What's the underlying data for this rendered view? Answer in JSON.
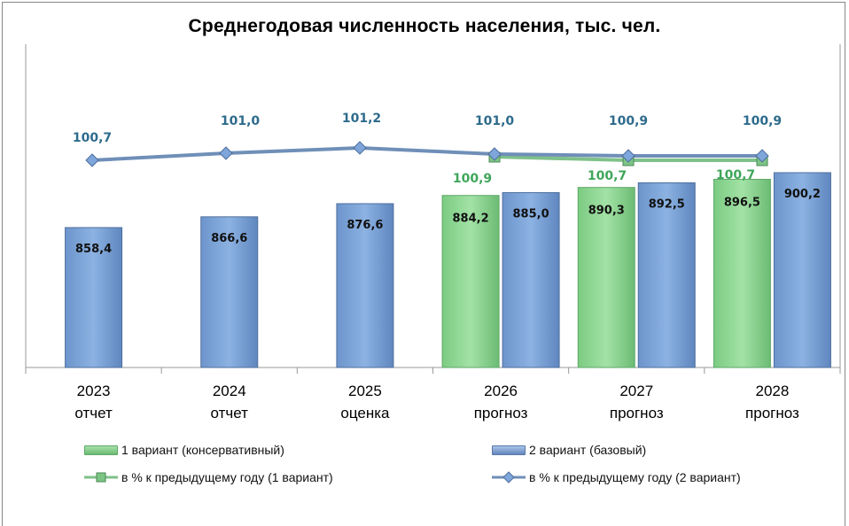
{
  "chart_data": {
    "type": "bar",
    "title": "Среднегодовая численность населения, тыс. чел.",
    "categories": [
      "2023 отчет",
      "2024 отчет",
      "2025 оценка",
      "2026 прогноз",
      "2027 прогноз",
      "2028 прогноз"
    ],
    "category_years": [
      "2023",
      "2024",
      "2025",
      "2026",
      "2027",
      "2028"
    ],
    "category_types": [
      "отчет",
      "отчет",
      "оценка",
      "прогноз",
      "прогноз",
      "прогноз"
    ],
    "series": [
      {
        "name": "1 вариант (консервативный)",
        "kind": "bar",
        "color": "#8FD694",
        "values": [
          null,
          null,
          null,
          884.2,
          890.3,
          896.5
        ],
        "labels": [
          "",
          "",
          "",
          "884,2",
          "890,3",
          "896,5"
        ]
      },
      {
        "name": "2 вариант (базовый)",
        "kind": "bar",
        "color": "#7EA6DA",
        "values": [
          858.4,
          866.6,
          876.6,
          885.0,
          892.5,
          900.2
        ],
        "labels": [
          "858,4",
          "866,6",
          "876,6",
          "885,0",
          "892,5",
          "900,2"
        ]
      },
      {
        "name": "в % к предыдущему году (1 вариант)",
        "kind": "line",
        "color": "#7FC18A",
        "values": [
          null,
          null,
          null,
          100.9,
          100.7,
          100.7
        ],
        "labels": [
          "",
          "",
          "",
          "100,9",
          "100,7",
          "100,7"
        ]
      },
      {
        "name": "в % к предыдущему году (2 вариант)",
        "kind": "line",
        "color": "#6F8FB8",
        "values": [
          100.7,
          101.0,
          101.2,
          101.0,
          100.9,
          100.9
        ],
        "labels": [
          "100,7",
          "101,0",
          "101,2",
          "101,0",
          "100,9",
          "100,9"
        ]
      }
    ],
    "xlabel": "",
    "ylabel": "",
    "grid": false,
    "legend_position": "bottom"
  },
  "legend": {
    "s1": "1 вариант (консервативный)",
    "s2": "2 вариант (базовый)",
    "s3": "в % к предыдущему году (1 вариант)",
    "s4": "в % к предыдущему году (2 вариант)"
  }
}
